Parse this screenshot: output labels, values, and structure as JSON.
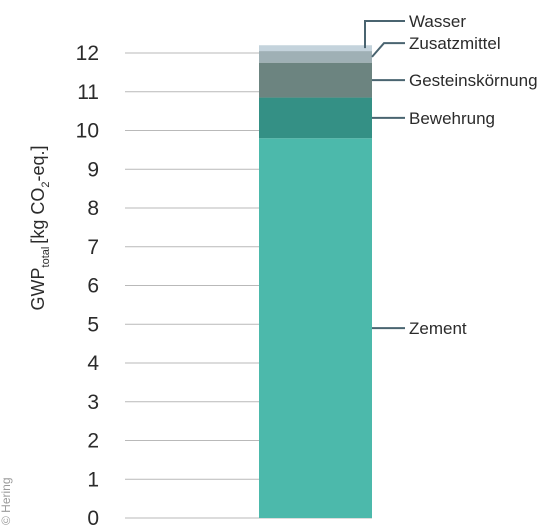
{
  "chart_data": {
    "type": "bar",
    "stacked": true,
    "categories": [
      ""
    ],
    "series": [
      {
        "name": "Zement",
        "values": [
          9.8
        ],
        "color": "#4cb9ab"
      },
      {
        "name": "Bewehrung",
        "values": [
          1.05
        ],
        "color": "#349085"
      },
      {
        "name": "Gesteinskörnung",
        "values": [
          0.9
        ],
        "color": "#6c8480"
      },
      {
        "name": "Zusatzmittel",
        "values": [
          0.3
        ],
        "color": "#9fb0b5"
      },
      {
        "name": "Wasser",
        "values": [
          0.15
        ],
        "color": "#c4d3dc"
      }
    ],
    "ylabel": {
      "main": "GWP",
      "subscript": "total",
      "unit_open": "[kg CO",
      "unit_subscript": "2",
      "unit_close": "-eq.]"
    },
    "ylim": [
      0,
      12
    ],
    "yticks": [
      "0",
      "1",
      "2",
      "3",
      "4",
      "5",
      "6",
      "7",
      "8",
      "9",
      "10",
      "11",
      "12"
    ],
    "grid": true,
    "legend": "labels-right-with-leaders"
  },
  "credit": "© Hering"
}
